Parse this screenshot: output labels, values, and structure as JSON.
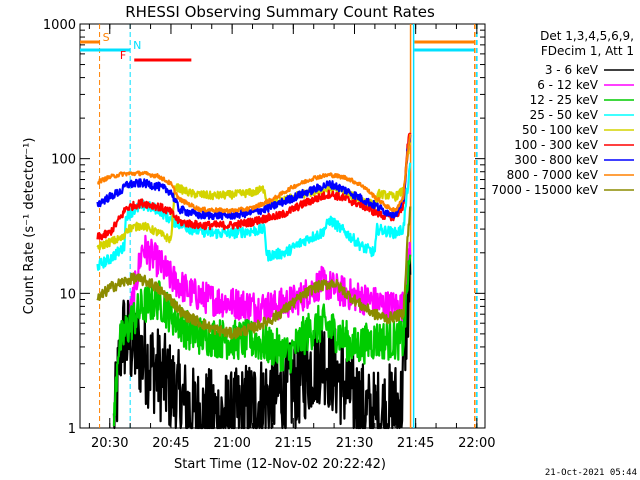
{
  "chart_data": {
    "type": "line",
    "title": "RHESSI Observing Summary Count Rates",
    "xlabel": "Start Time (12-Nov-02 20:22:42)",
    "ylabel": "Count Rate (s⁻¹ detector⁻¹)",
    "yscale": "log",
    "ylim": [
      1,
      1000
    ],
    "xlim": [
      "20:22:42",
      "22:02:00"
    ],
    "x_ticks": [
      "20:30",
      "20:45",
      "21:00",
      "21:15",
      "21:30",
      "21:45",
      "22:00"
    ],
    "y_ticks": [
      "1",
      "10",
      "100",
      "1000"
    ],
    "grid": false,
    "legend_position": "right",
    "legend_header": [
      "Det 1,3,4,5,6,9,",
      "FDecim 1, Att 1"
    ],
    "footer_date": "21-Oct-2021 05:44",
    "flags": [
      {
        "label": "S",
        "color": "#ff8000",
        "start": "20:22:42",
        "end": "20:27:30",
        "vline": "20:27:30"
      },
      {
        "label": "N",
        "color": "#00e0ff",
        "start": "20:22:42",
        "end": "20:35:00",
        "vline": "20:35:00"
      },
      {
        "label": "F",
        "color": "#ff0000",
        "start": "20:36:00",
        "end": "20:50:00"
      }
    ],
    "vlines": [
      {
        "time": "21:44:30",
        "color": "#00e0ff",
        "style": "solid"
      },
      {
        "time": "21:43:45",
        "color": "#ff8000",
        "style": "solid"
      },
      {
        "time": "21:59:30",
        "color": "#ff8000",
        "style": "dashed"
      },
      {
        "time": "22:00:00",
        "color": "#00e0ff",
        "style": "dashed"
      }
    ],
    "series": [
      {
        "name": "3 - 6 keV",
        "color": "#000000",
        "noise": 0.35,
        "points": [
          [
            "20:31:00",
            1.0
          ],
          [
            "20:33:00",
            5.0
          ],
          [
            "20:36:00",
            4.0
          ],
          [
            "20:40:00",
            3.0
          ],
          [
            "20:45:00",
            2.0
          ],
          [
            "20:50:00",
            1.3
          ],
          [
            "21:00:00",
            1.2
          ],
          [
            "21:05:00",
            1.5
          ],
          [
            "21:15:00",
            2.0
          ],
          [
            "21:22:00",
            3.5
          ],
          [
            "21:28:00",
            2.0
          ],
          [
            "21:34:00",
            1.2
          ],
          [
            "21:41:30",
            1.5
          ],
          [
            "21:42:00",
            3.0
          ],
          [
            "21:43:00",
            8.0
          ],
          [
            "21:43:45",
            12.0
          ]
        ]
      },
      {
        "name": "6 - 12 keV",
        "color": "#ff00ff",
        "noise": 0.12,
        "points": [
          [
            "20:35:00",
            7.0
          ],
          [
            "20:38:00",
            22.0
          ],
          [
            "20:42:00",
            17.0
          ],
          [
            "20:45:00",
            13.0
          ],
          [
            "20:50:00",
            10.0
          ],
          [
            "20:55:00",
            9.0
          ],
          [
            "21:00:00",
            8.5
          ],
          [
            "21:06:00",
            8.0
          ],
          [
            "21:10:00",
            8.0
          ],
          [
            "21:16:00",
            9.0
          ],
          [
            "21:22:00",
            12.0
          ],
          [
            "21:28:00",
            10.0
          ],
          [
            "21:33:00",
            9.0
          ],
          [
            "21:38:00",
            8.0
          ],
          [
            "21:42:00",
            8.0
          ],
          [
            "21:43:00",
            15.0
          ],
          [
            "21:43:45",
            25.0
          ]
        ]
      },
      {
        "name": "12 - 25 keV",
        "color": "#00cc00",
        "noise": 0.15,
        "points": [
          [
            "20:31:00",
            1.0
          ],
          [
            "20:32:00",
            4.0
          ],
          [
            "20:35:00",
            6.0
          ],
          [
            "20:38:00",
            8.0
          ],
          [
            "20:42:00",
            9.0
          ],
          [
            "20:45:00",
            7.0
          ],
          [
            "20:50:00",
            5.0
          ],
          [
            "21:00:00",
            4.5
          ],
          [
            "21:05:00",
            4.5
          ],
          [
            "21:10:00",
            4.0
          ],
          [
            "21:14:00",
            3.5
          ],
          [
            "21:18:00",
            5.0
          ],
          [
            "21:22:00",
            6.0
          ],
          [
            "21:26:00",
            5.0
          ],
          [
            "21:30:00",
            4.0
          ],
          [
            "21:35:00",
            4.5
          ],
          [
            "21:40:00",
            4.5
          ],
          [
            "21:42:00",
            4.5
          ],
          [
            "21:43:00",
            12.0
          ],
          [
            "21:43:45",
            18.0
          ]
        ]
      },
      {
        "name": "25 - 50 keV",
        "color": "#00ffff",
        "noise": 0.04,
        "points": [
          [
            "20:27:00",
            16.0
          ],
          [
            "20:30:00",
            18.0
          ],
          [
            "20:33:30",
            22.0
          ],
          [
            "20:34:00",
            38.0
          ],
          [
            "20:38:00",
            45.0
          ],
          [
            "20:42:00",
            42.0
          ],
          [
            "20:45:00",
            35.0
          ],
          [
            "20:50:00",
            30.0
          ],
          [
            "20:55:00",
            28.0
          ],
          [
            "21:00:00",
            28.0
          ],
          [
            "21:05:00",
            29.0
          ],
          [
            "21:08:00",
            30.0
          ],
          [
            "21:08:30",
            19.0
          ],
          [
            "21:13:00",
            20.0
          ],
          [
            "21:18:00",
            25.0
          ],
          [
            "21:22:00",
            28.0
          ],
          [
            "21:24:00",
            35.0
          ],
          [
            "21:28:00",
            28.0
          ],
          [
            "21:32:00",
            22.0
          ],
          [
            "21:35:00",
            20.0
          ],
          [
            "21:35:30",
            30.0
          ],
          [
            "21:40:00",
            28.0
          ],
          [
            "21:42:00",
            30.0
          ],
          [
            "21:43:00",
            60.0
          ],
          [
            "21:43:45",
            90.0
          ]
        ]
      },
      {
        "name": "50 - 100 keV",
        "color": "#d4d400",
        "noise": 0.03,
        "points": [
          [
            "20:27:00",
            22.0
          ],
          [
            "20:30:00",
            24.0
          ],
          [
            "20:33:30",
            26.0
          ],
          [
            "20:34:00",
            30.0
          ],
          [
            "20:38:00",
            32.0
          ],
          [
            "20:41:00",
            29.0
          ],
          [
            "20:45:00",
            25.0
          ],
          [
            "20:46:00",
            62.0
          ],
          [
            "20:50:00",
            55.0
          ],
          [
            "20:55:00",
            53.0
          ],
          [
            "21:00:00",
            54.0
          ],
          [
            "21:05:00",
            56.0
          ],
          [
            "21:08:00",
            60.0
          ],
          [
            "21:08:30",
            45.0
          ],
          [
            "21:13:00",
            50.0
          ],
          [
            "21:18:00",
            55.0
          ],
          [
            "21:22:00",
            58.0
          ],
          [
            "21:25:00",
            60.0
          ],
          [
            "21:30:00",
            52.0
          ],
          [
            "21:35:00",
            45.0
          ],
          [
            "21:36:00",
            55.0
          ],
          [
            "21:40:00",
            52.0
          ],
          [
            "21:42:00",
            58.0
          ],
          [
            "21:43:00",
            100.0
          ],
          [
            "21:43:45",
            140.0
          ]
        ]
      },
      {
        "name": "100 - 300 keV",
        "color": "#ff0000",
        "noise": 0.03,
        "points": [
          [
            "20:27:00",
            26.0
          ],
          [
            "20:30:00",
            28.0
          ],
          [
            "20:33:00",
            38.0
          ],
          [
            "20:34:00",
            43.0
          ],
          [
            "20:38:00",
            47.0
          ],
          [
            "20:42:00",
            44.0
          ],
          [
            "20:45:00",
            40.0
          ],
          [
            "20:47:00",
            34.0
          ],
          [
            "20:52:00",
            32.0
          ],
          [
            "21:00:00",
            32.0
          ],
          [
            "21:05:00",
            34.0
          ],
          [
            "21:08:00",
            36.0
          ],
          [
            "21:12:00",
            38.0
          ],
          [
            "21:18:00",
            47.0
          ],
          [
            "21:24:00",
            55.0
          ],
          [
            "21:28:00",
            50.0
          ],
          [
            "21:32:00",
            45.0
          ],
          [
            "21:35:00",
            40.0
          ],
          [
            "21:37:00",
            38.0
          ],
          [
            "21:40:00",
            37.0
          ],
          [
            "21:42:00",
            45.0
          ],
          [
            "21:43:00",
            120.0
          ],
          [
            "21:43:45",
            170.0
          ]
        ]
      },
      {
        "name": "300 - 800 keV",
        "color": "#0000ff",
        "noise": 0.03,
        "points": [
          [
            "20:27:00",
            46.0
          ],
          [
            "20:30:00",
            52.0
          ],
          [
            "20:33:00",
            58.0
          ],
          [
            "20:34:00",
            64.0
          ],
          [
            "20:38:00",
            66.0
          ],
          [
            "20:42:00",
            62.0
          ],
          [
            "20:45:00",
            57.0
          ],
          [
            "20:47:00",
            42.0
          ],
          [
            "20:52:00",
            38.0
          ],
          [
            "21:00:00",
            38.0
          ],
          [
            "21:05:00",
            40.0
          ],
          [
            "21:08:00",
            42.0
          ],
          [
            "21:12:00",
            47.0
          ],
          [
            "21:18:00",
            56.0
          ],
          [
            "21:24:00",
            65.0
          ],
          [
            "21:28:00",
            58.0
          ],
          [
            "21:32:00",
            50.0
          ],
          [
            "21:35:00",
            45.0
          ],
          [
            "21:38:00",
            40.0
          ],
          [
            "21:40:00",
            39.0
          ],
          [
            "21:42:00",
            48.0
          ],
          [
            "21:43:00",
            110.0
          ],
          [
            "21:43:45",
            150.0
          ]
        ]
      },
      {
        "name": "800 - 7000 keV",
        "color": "#ff8000",
        "noise": 0.015,
        "points": [
          [
            "20:27:00",
            67.0
          ],
          [
            "20:30:00",
            73.0
          ],
          [
            "20:33:00",
            77.0
          ],
          [
            "20:38:00",
            78.0
          ],
          [
            "20:42:00",
            74.0
          ],
          [
            "20:45:00",
            65.0
          ],
          [
            "20:47:00",
            50.0
          ],
          [
            "20:52:00",
            42.0
          ],
          [
            "21:00:00",
            41.0
          ],
          [
            "21:05:00",
            43.0
          ],
          [
            "21:10:00",
            50.0
          ],
          [
            "21:15:00",
            62.0
          ],
          [
            "21:20:00",
            72.0
          ],
          [
            "21:24:00",
            76.0
          ],
          [
            "21:28:00",
            72.0
          ],
          [
            "21:32:00",
            63.0
          ],
          [
            "21:35:00",
            52.0
          ],
          [
            "21:38:00",
            44.0
          ],
          [
            "21:40:00",
            41.0
          ],
          [
            "21:42:00",
            52.0
          ],
          [
            "21:43:00",
            110.0
          ],
          [
            "21:43:45",
            160.0
          ]
        ]
      },
      {
        "name": "7000 - 15000 keV",
        "color": "#8b8b00",
        "noise": 0.04,
        "points": [
          [
            "20:27:00",
            9.0
          ],
          [
            "20:30:00",
            11.0
          ],
          [
            "20:33:00",
            12.0
          ],
          [
            "20:36:00",
            13.0
          ],
          [
            "20:40:00",
            12.0
          ],
          [
            "20:45:00",
            9.0
          ],
          [
            "20:48:00",
            7.0
          ],
          [
            "20:55:00",
            5.5
          ],
          [
            "21:00:00",
            5.0
          ],
          [
            "21:05:00",
            5.5
          ],
          [
            "21:10:00",
            6.5
          ],
          [
            "21:15:00",
            8.5
          ],
          [
            "21:20:00",
            11.0
          ],
          [
            "21:25:00",
            12.0
          ],
          [
            "21:28:00",
            10.0
          ],
          [
            "21:32:00",
            8.0
          ],
          [
            "21:35:00",
            7.0
          ],
          [
            "21:38:00",
            6.5
          ],
          [
            "21:42:00",
            7.0
          ],
          [
            "21:43:00",
            25.0
          ],
          [
            "21:43:45",
            45.0
          ]
        ]
      }
    ]
  }
}
